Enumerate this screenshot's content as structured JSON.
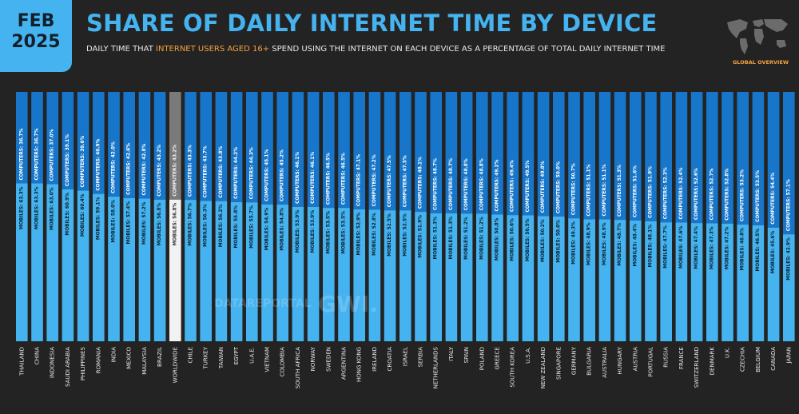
{
  "header": {
    "month": "FEB",
    "year": "2025",
    "title": "SHARE OF DAILY INTERNET TIME BY DEVICE",
    "subtitle_pre": "DAILY TIME THAT ",
    "subtitle_highlight": "INTERNET USERS AGED 16+",
    "subtitle_post": " SPEND USING THE INTERNET ON EACH DEVICE AS A PERCENTAGE OF TOTAL DAILY INTERNET TIME",
    "badge": "GLOBAL OVERVIEW"
  },
  "watermark": {
    "left": "DATAREPORTAL",
    "right": "GWI."
  },
  "colors": {
    "background": "#232323",
    "accent": "#45b3ef",
    "highlight": "#f4a340",
    "computers": "#1776c9",
    "mobiles": "#45b3ef",
    "worldwide_computers": "#7a7a7a",
    "worldwide_mobiles": "#f2f2f2"
  },
  "chart_data": {
    "type": "bar",
    "stacked": true,
    "orientation": "vertical",
    "ylim": [
      0,
      100
    ],
    "highlight_category": "WORLDWIDE",
    "categories": [
      "THAILAND",
      "CHINA",
      "INDONESIA",
      "SAUDI ARABIA",
      "PHILIPPINES",
      "ROMANIA",
      "INDIA",
      "MEXICO",
      "MALAYSIA",
      "BRAZIL",
      "WORLDWIDE",
      "CHILE",
      "TURKEY",
      "TAIWAN",
      "EGYPT",
      "U.A.E.",
      "VIETNAM",
      "COLOMBIA",
      "SOUTH AFRICA",
      "NORWAY",
      "SWEDEN",
      "ARGENTINA",
      "HONG KONG",
      "IRELAND",
      "CROATIA",
      "ISRAEL",
      "SERBIA",
      "NETHERLANDS",
      "ITALY",
      "SPAIN",
      "POLAND",
      "GREECE",
      "SOUTH KOREA",
      "U.S.A.",
      "NEW ZEALAND",
      "SINGAPORE",
      "GERMANY",
      "BULGARIA",
      "AUSTRALIA",
      "HUNGARY",
      "AUSTRIA",
      "PORTUGAL",
      "RUSSIA",
      "FRANCE",
      "SWITZERLAND",
      "DENMARK",
      "U.K.",
      "CZECHIA",
      "BELGIUM",
      "CANADA",
      "JAPAN"
    ],
    "series": [
      {
        "name": "MOBILES",
        "values": [
          63.3,
          63.3,
          63.0,
          60.9,
          60.4,
          59.1,
          58.0,
          57.4,
          57.2,
          56.8,
          56.8,
          56.7,
          56.3,
          56.2,
          55.8,
          55.7,
          54.9,
          54.8,
          53.9,
          53.9,
          53.5,
          53.5,
          52.9,
          52.8,
          52.5,
          52.5,
          51.9,
          51.3,
          51.3,
          51.2,
          51.2,
          50.8,
          50.6,
          50.5,
          50.2,
          50.0,
          49.3,
          48.9,
          48.9,
          48.7,
          48.4,
          48.1,
          47.7,
          47.6,
          47.4,
          47.3,
          47.2,
          46.8,
          46.5,
          45.6,
          42.9
        ],
        "labels": [
          "63.3%",
          "63.3%",
          "63.0%",
          "60.9%",
          "60.4%",
          "59.1%",
          "58.0%",
          "57.4%",
          "57.2%",
          "56.8%",
          "56.8%",
          "56.7%",
          "56.3%",
          "56.2%",
          "55.8%",
          "55.7%",
          "54.9%",
          "54.8%",
          "53.9%",
          "53.9%",
          "53.5%",
          "53.5%",
          "52.9%",
          "52.8%",
          "52.5%",
          "52.5%",
          "51.9%",
          "51.3%",
          "51.3%",
          "51.2%",
          "51.2%",
          "50.8%",
          "50.6%",
          "50.5%",
          "50.2%",
          "50.0%",
          "49.3%",
          "48.9%",
          "48.9%",
          "48.7%",
          "48.4%",
          "48.1%",
          "47.7%",
          "47.6%",
          "47.4%",
          "47.3%",
          "47.2%",
          "46.8%",
          "46.5%",
          "45.6%",
          "42.9%"
        ]
      },
      {
        "name": "COMPUTERS",
        "values": [
          36.7,
          36.7,
          37.0,
          39.1,
          39.6,
          40.9,
          42.0,
          42.6,
          42.8,
          43.2,
          43.2,
          43.3,
          43.7,
          43.8,
          44.2,
          44.3,
          45.1,
          45.2,
          46.1,
          46.1,
          46.5,
          46.5,
          47.1,
          47.2,
          47.5,
          47.5,
          48.1,
          48.7,
          48.7,
          48.8,
          48.8,
          49.2,
          49.4,
          49.5,
          49.8,
          50.0,
          50.7,
          51.1,
          51.1,
          51.3,
          51.6,
          51.9,
          52.3,
          52.4,
          52.6,
          52.7,
          52.8,
          53.2,
          53.5,
          54.4,
          57.1
        ],
        "labels": [
          "36.7%",
          "36.7%",
          "37.0%",
          "39.1%",
          "39.6%",
          "40.9%",
          "42.0%",
          "42.6%",
          "42.8%",
          "43.2%",
          "43.2%",
          "43.3%",
          "43.7%",
          "43.8%",
          "44.2%",
          "44.3%",
          "45.1%",
          "45.2%",
          "46.1%",
          "46.1%",
          "46.5%",
          "46.5%",
          "47.1%",
          "47.2%",
          "47.5%",
          "47.5%",
          "48.1%",
          "48.7%",
          "48.7%",
          "48.8%",
          "48.8%",
          "49.2%",
          "49.4%",
          "49.5%",
          "49.8%",
          "50.0%",
          "50.7%",
          "51.1%",
          "51.1%",
          "51.3%",
          "51.6%",
          "51.9%",
          "52.3%",
          "52.4%",
          "52.6%",
          "52.7%",
          "52.8%",
          "53.2%",
          "53.5%",
          "54.4%",
          "57.1%"
        ]
      }
    ]
  }
}
